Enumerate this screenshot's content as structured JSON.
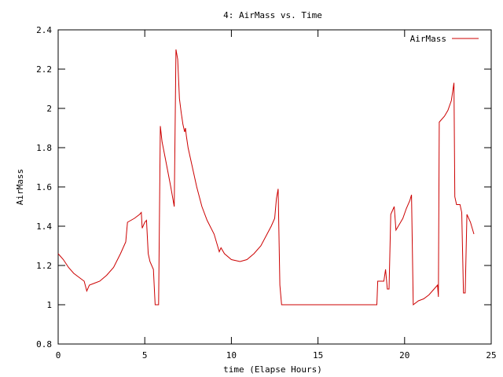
{
  "chart_data": {
    "type": "line",
    "title": "4: AirMass vs. Time",
    "xlabel": "time (Elapse Hours)",
    "ylabel": "AirMass",
    "xlim": [
      0,
      25
    ],
    "ylim": [
      0.8,
      2.4
    ],
    "xticks": [
      0,
      5,
      10,
      15,
      20,
      25
    ],
    "yticks": [
      0.8,
      1,
      1.2,
      1.4,
      1.6,
      1.8,
      2,
      2.2,
      2.4
    ],
    "xtick_labels": [
      "0",
      "5",
      "10",
      "15",
      "20",
      "25"
    ],
    "ytick_labels": [
      "0.8",
      "1",
      "1.2",
      "1.4",
      "1.6",
      "1.8",
      "2",
      "2.2",
      "2.4"
    ],
    "grid": false,
    "legend_position": "top-right",
    "series": [
      {
        "name": "AirMass",
        "color": "#cc0000",
        "points": [
          [
            0.0,
            1.26
          ],
          [
            0.3,
            1.23
          ],
          [
            0.6,
            1.19
          ],
          [
            0.9,
            1.16
          ],
          [
            1.2,
            1.14
          ],
          [
            1.5,
            1.12
          ],
          [
            1.65,
            1.07
          ],
          [
            1.8,
            1.1
          ],
          [
            2.1,
            1.11
          ],
          [
            2.4,
            1.12
          ],
          [
            2.8,
            1.15
          ],
          [
            3.2,
            1.19
          ],
          [
            3.6,
            1.26
          ],
          [
            3.9,
            1.32
          ],
          [
            4.0,
            1.42
          ],
          [
            4.4,
            1.44
          ],
          [
            4.7,
            1.46
          ],
          [
            4.8,
            1.47
          ],
          [
            4.85,
            1.39
          ],
          [
            5.0,
            1.42
          ],
          [
            5.1,
            1.43
          ],
          [
            5.2,
            1.26
          ],
          [
            5.3,
            1.22
          ],
          [
            5.5,
            1.18
          ],
          [
            5.6,
            1.0
          ],
          [
            5.8,
            1.0
          ],
          [
            5.9,
            1.91
          ],
          [
            6.0,
            1.83
          ],
          [
            6.2,
            1.74
          ],
          [
            6.5,
            1.6
          ],
          [
            6.7,
            1.5
          ],
          [
            6.8,
            2.3
          ],
          [
            6.9,
            2.25
          ],
          [
            7.0,
            2.05
          ],
          [
            7.1,
            1.98
          ],
          [
            7.2,
            1.92
          ],
          [
            7.3,
            1.88
          ],
          [
            7.35,
            1.9
          ],
          [
            7.4,
            1.86
          ],
          [
            7.5,
            1.8
          ],
          [
            7.7,
            1.72
          ],
          [
            8.0,
            1.6
          ],
          [
            8.3,
            1.5
          ],
          [
            8.6,
            1.43
          ],
          [
            9.0,
            1.36
          ],
          [
            9.2,
            1.3
          ],
          [
            9.3,
            1.27
          ],
          [
            9.4,
            1.29
          ],
          [
            9.6,
            1.26
          ],
          [
            10.0,
            1.23
          ],
          [
            10.5,
            1.22
          ],
          [
            10.9,
            1.23
          ],
          [
            11.3,
            1.26
          ],
          [
            11.7,
            1.3
          ],
          [
            12.0,
            1.35
          ],
          [
            12.3,
            1.4
          ],
          [
            12.5,
            1.44
          ],
          [
            12.6,
            1.54
          ],
          [
            12.7,
            1.59
          ],
          [
            12.8,
            1.1
          ],
          [
            12.9,
            1.0
          ],
          [
            13.5,
            1.0
          ],
          [
            15.0,
            1.0
          ],
          [
            16.5,
            1.0
          ],
          [
            18.0,
            1.0
          ],
          [
            18.4,
            1.0
          ],
          [
            18.45,
            1.12
          ],
          [
            18.6,
            1.12
          ],
          [
            18.8,
            1.12
          ],
          [
            18.9,
            1.18
          ],
          [
            19.0,
            1.08
          ],
          [
            19.1,
            1.08
          ],
          [
            19.2,
            1.46
          ],
          [
            19.4,
            1.5
          ],
          [
            19.5,
            1.38
          ],
          [
            19.7,
            1.41
          ],
          [
            19.9,
            1.44
          ],
          [
            20.1,
            1.49
          ],
          [
            20.3,
            1.53
          ],
          [
            20.4,
            1.56
          ],
          [
            20.5,
            1.0
          ],
          [
            20.8,
            1.02
          ],
          [
            21.1,
            1.03
          ],
          [
            21.4,
            1.05
          ],
          [
            21.7,
            1.08
          ],
          [
            21.9,
            1.1
          ],
          [
            21.95,
            1.04
          ],
          [
            22.0,
            1.93
          ],
          [
            22.3,
            1.96
          ],
          [
            22.5,
            1.99
          ],
          [
            22.7,
            2.04
          ],
          [
            22.85,
            2.13
          ],
          [
            22.9,
            1.55
          ],
          [
            23.0,
            1.51
          ],
          [
            23.2,
            1.51
          ],
          [
            23.3,
            1.47
          ],
          [
            23.4,
            1.06
          ],
          [
            23.5,
            1.06
          ],
          [
            23.6,
            1.46
          ],
          [
            23.8,
            1.42
          ],
          [
            24.0,
            1.36
          ]
        ]
      }
    ]
  }
}
